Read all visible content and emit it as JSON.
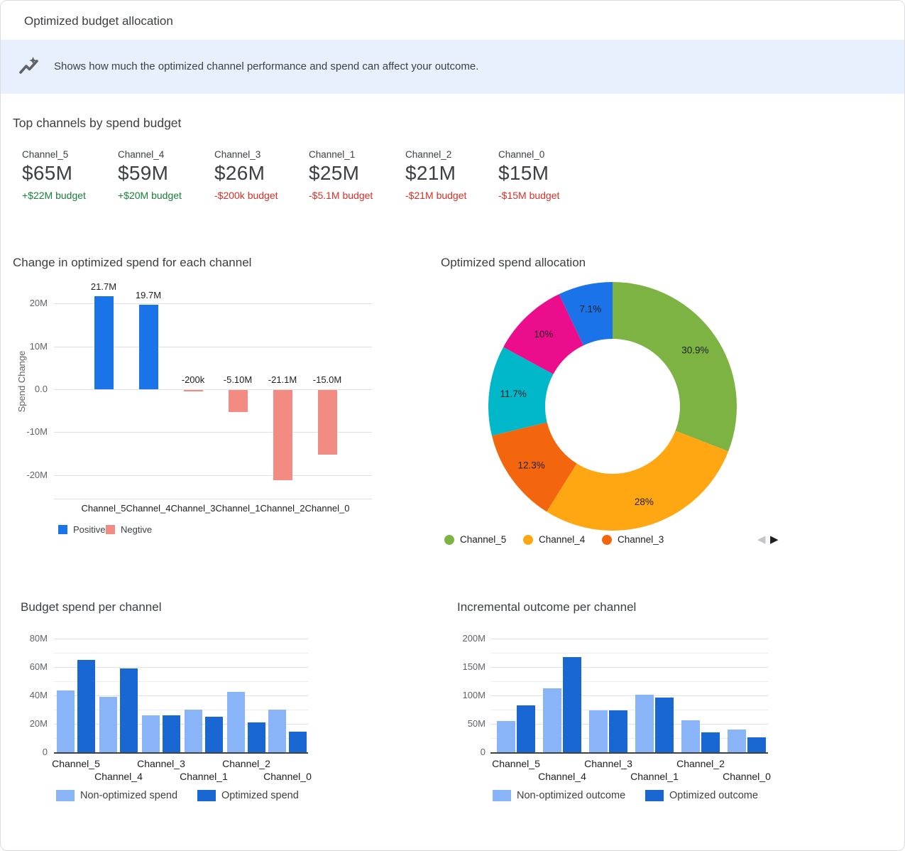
{
  "header": {
    "title": "Optimized budget allocation"
  },
  "banner": {
    "icon": "trending-sparkle-icon",
    "text": "Shows how much the optimized channel performance and spend can affect your outcome.",
    "background": "#e8f0fe"
  },
  "top_channels": {
    "title": "Top channels by spend budget",
    "cards": [
      {
        "channel": "Channel_5",
        "value": "$65M",
        "budget_delta": "+$22M budget",
        "direction": "positive"
      },
      {
        "channel": "Channel_4",
        "value": "$59M",
        "budget_delta": "+$20M budget",
        "direction": "positive"
      },
      {
        "channel": "Channel_3",
        "value": "$26M",
        "budget_delta": "-$200k budget",
        "direction": "negative"
      },
      {
        "channel": "Channel_1",
        "value": "$25M",
        "budget_delta": "-$5.1M budget",
        "direction": "negative"
      },
      {
        "channel": "Channel_2",
        "value": "$21M",
        "budget_delta": "-$21M budget",
        "direction": "negative"
      },
      {
        "channel": "Channel_0",
        "value": "$15M",
        "budget_delta": "-$15M budget",
        "direction": "negative"
      }
    ]
  },
  "colors": {
    "positive_text": "#188038",
    "negative_text": "#d93025",
    "accent_blue": "#1a73e8",
    "salmon": "#f28b82",
    "light_blue": "#8ab4f8",
    "dark_blue": "#1967d2",
    "banner_bg": "#e8f0fe",
    "card_border": "#dadce0"
  },
  "chart_data": [
    {
      "id": "spend_change",
      "type": "bar",
      "title": "Change in optimized spend for each channel",
      "ylabel": "Spend Change",
      "categories": [
        "Channel_5",
        "Channel_4",
        "Channel_3",
        "Channel_1",
        "Channel_2",
        "Channel_0"
      ],
      "values": [
        21.7,
        19.7,
        -0.2,
        -5.1,
        -21.1,
        -15.0
      ],
      "unit": "M",
      "bar_labels": [
        "21.7M",
        "19.7M",
        "-200k",
        "-5.10M",
        "-21.1M",
        "-15.0M"
      ],
      "ytick_labels": [
        "20M",
        "10M",
        "0.0",
        "-10M",
        "-20M"
      ],
      "ytick_values": [
        20,
        10,
        0,
        -10,
        -20
      ],
      "ylim": [
        -25.5,
        25.5
      ],
      "grid": true,
      "legend_position": "bottom",
      "legend": [
        {
          "label": "Positive",
          "color": "#1a73e8"
        },
        {
          "label": "Negtive",
          "color": "#f28b82"
        }
      ]
    },
    {
      "id": "spend_allocation",
      "type": "pie",
      "title": "Optimized spend allocation",
      "donut": true,
      "slices": [
        {
          "display": "30.9%",
          "pct": 30.9,
          "color": "#7cb342"
        },
        {
          "display": "28%",
          "pct": 28.0,
          "color": "#ffa712"
        },
        {
          "display": "12.3%",
          "pct": 12.3,
          "color": "#f4660d"
        },
        {
          "display": "11.7%",
          "pct": 11.7,
          "color": "#00b8c9"
        },
        {
          "display": "10%",
          "pct": 10.0,
          "color": "#eb0d8c"
        },
        {
          "display": "7.1%",
          "pct": 7.1,
          "color": "#1a73e8"
        }
      ],
      "legend_position": "bottom",
      "legend": [
        {
          "label": "Channel_5",
          "color": "#7cb342"
        },
        {
          "label": "Channel_4",
          "color": "#ffa712"
        },
        {
          "label": "Channel_3",
          "color": "#f4660d"
        }
      ],
      "pagination": {
        "prev": "page-prev-arrow",
        "next": "page-next-arrow",
        "prev_glyph": "◀",
        "next_glyph": "▶"
      }
    },
    {
      "id": "budget_spend",
      "type": "bar",
      "title": "Budget spend per channel",
      "categories": [
        "Channel_5",
        "Channel_4",
        "Channel_3",
        "Channel_1",
        "Channel_2",
        "Channel_0"
      ],
      "series": [
        {
          "name": "Non-optimized spend",
          "color": "#8ab4f8",
          "values": [
            43.5,
            39,
            26,
            30,
            42.5,
            30
          ]
        },
        {
          "name": "Optimized spend",
          "color": "#1967d2",
          "values": [
            65,
            59,
            26,
            25,
            21,
            14.5
          ]
        }
      ],
      "unit": "M",
      "ytick_labels": [
        "80M",
        "60M",
        "40M",
        "20M",
        "0"
      ],
      "ytick_values": [
        80,
        60,
        40,
        20,
        0
      ],
      "minor_ticks": [
        70,
        50,
        30,
        10
      ],
      "ylim": [
        0,
        80
      ],
      "grid": true,
      "legend_position": "bottom"
    },
    {
      "id": "incremental_outcome",
      "type": "bar",
      "title": "Incremental outcome per channel",
      "categories": [
        "Channel_5",
        "Channel_4",
        "Channel_3",
        "Channel_1",
        "Channel_2",
        "Channel_0"
      ],
      "series": [
        {
          "name": "Non-optimized outcome",
          "color": "#8ab4f8",
          "values": [
            55,
            112,
            74,
            101,
            56,
            40
          ]
        },
        {
          "name": "Optimized outcome",
          "color": "#1967d2",
          "values": [
            82,
            167,
            74,
            96,
            35,
            26
          ]
        }
      ],
      "unit": "M",
      "ytick_labels": [
        "200M",
        "150M",
        "100M",
        "50M",
        "0"
      ],
      "ytick_values": [
        200,
        150,
        100,
        50,
        0
      ],
      "minor_ticks": [
        175,
        125,
        75,
        25
      ],
      "ylim": [
        0,
        200
      ],
      "grid": true,
      "legend_position": "bottom"
    }
  ]
}
